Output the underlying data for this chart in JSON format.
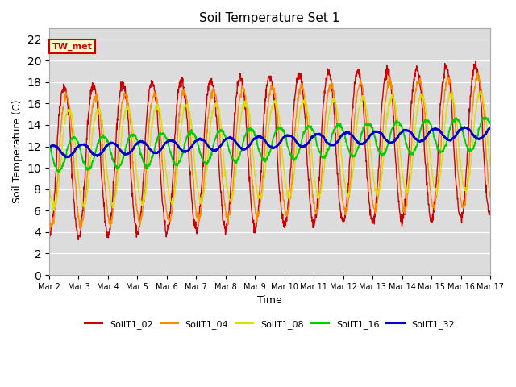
{
  "title": "Soil Temperature Set 1",
  "xlabel": "Time",
  "ylabel": "Soil Temperature (C)",
  "ylim": [
    0,
    23
  ],
  "yticks": [
    0,
    2,
    4,
    6,
    8,
    10,
    12,
    14,
    16,
    18,
    20,
    22
  ],
  "plot_bg_color": "#dcdcdc",
  "fig_bg_color": "#ffffff",
  "annotation_text": "TW_met",
  "annotation_bg": "#ffffcc",
  "annotation_edge": "#cc0000",
  "series_colors": {
    "SoilT1_02": "#cc0000",
    "SoilT1_04": "#ff8800",
    "SoilT1_08": "#dddd00",
    "SoilT1_16": "#00cc00",
    "SoilT1_32": "#0000cc"
  },
  "series_linewidths": {
    "SoilT1_02": 1.0,
    "SoilT1_04": 1.0,
    "SoilT1_08": 1.0,
    "SoilT1_16": 1.3,
    "SoilT1_32": 1.8
  },
  "x_tick_days": [
    2,
    3,
    4,
    5,
    6,
    7,
    8,
    9,
    10,
    11,
    12,
    13,
    14,
    15,
    16,
    17
  ],
  "figsize": [
    6.4,
    4.8
  ],
  "dpi": 100
}
